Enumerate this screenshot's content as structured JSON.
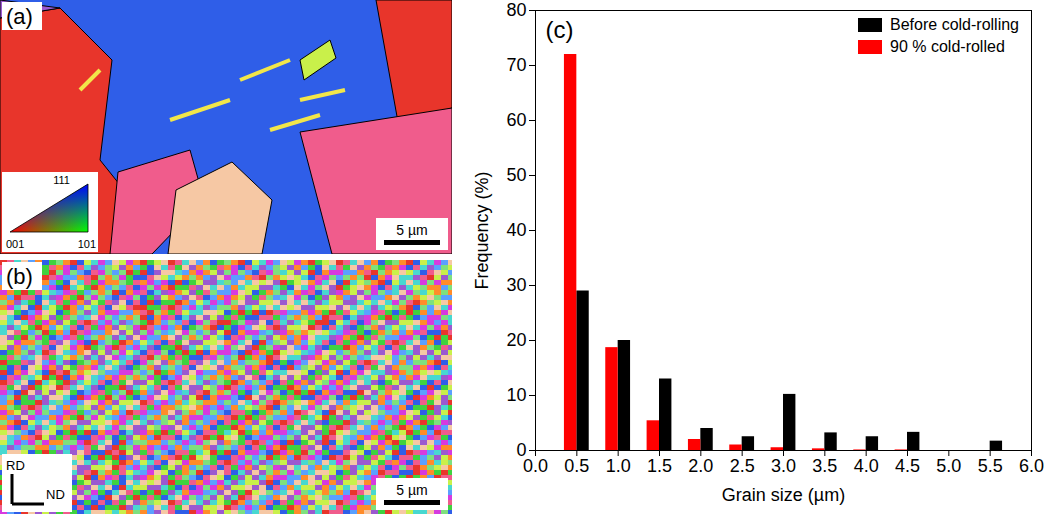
{
  "chart_data": {
    "type": "bar",
    "annotations": [
      "(c)"
    ],
    "x_label": "Grain size (µm)",
    "y_label": "Frequency (%)",
    "x": [
      0.5,
      1.0,
      1.5,
      2.0,
      2.5,
      3.0,
      3.5,
      4.0,
      4.5,
      5.0,
      5.5
    ],
    "series": [
      {
        "name": "Before cold-rolling",
        "color": "#000000",
        "values": [
          29,
          20,
          13,
          4,
          2.5,
          10.2,
          3.2,
          2.5,
          3.3,
          0,
          1.7
        ]
      },
      {
        "name": "90 % cold-rolled",
        "color": "#ff0000",
        "values": [
          72,
          18.7,
          5.4,
          2.0,
          1.0,
          0.5,
          0.3,
          0.1,
          0.1,
          0,
          0
        ]
      }
    ],
    "xlim": [
      0,
      6
    ],
    "xticks": [
      {
        "value": 0,
        "label": "0.0"
      },
      0.5,
      {
        "value": 1,
        "label": "1.0"
      },
      1.5,
      {
        "value": 2,
        "label": "2.0"
      },
      2.5,
      {
        "value": 3,
        "label": "3.0"
      },
      3.5,
      {
        "value": 4,
        "label": "4.0"
      },
      4.5,
      {
        "value": 5,
        "label": "5.0"
      },
      5.5,
      {
        "value": 6,
        "label": "6.0"
      }
    ],
    "ylim": [
      0,
      80
    ],
    "yticks": [
      0,
      10,
      20,
      30,
      40,
      50,
      60,
      70,
      80
    ],
    "grid": false,
    "legend": "upper right"
  },
  "image_panels": [
    {
      "label": "(a)",
      "scale_bar": "5 µm",
      "color_key": [
        "001",
        "101",
        "111"
      ]
    },
    {
      "label": "(b)",
      "scale_bar": "5 µm",
      "axes": [
        "RD",
        "ND"
      ]
    }
  ]
}
